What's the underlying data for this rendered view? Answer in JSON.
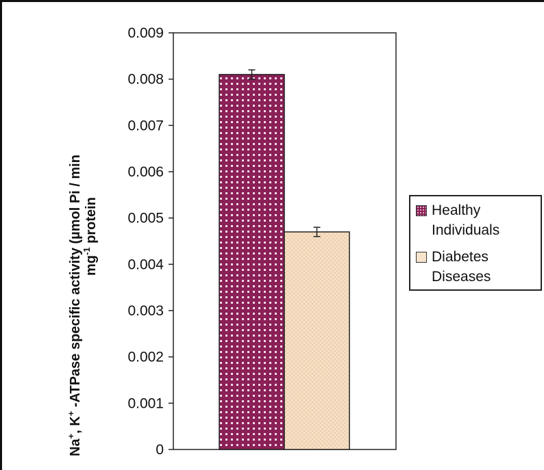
{
  "chart_data": {
    "type": "bar",
    "title": "",
    "xlabel": "",
    "ylabel_parts": [
      "Na",
      "+",
      ", K",
      "+",
      " -ATPase specific activity  (",
      "µ",
      "mol Pi / min",
      "mg",
      "-1",
      " protein"
    ],
    "ylim": [
      0,
      0.009
    ],
    "yticks": [
      "0",
      "0.001",
      "0.002",
      "0.003",
      "0.004",
      "0.005",
      "0.006",
      "0.007",
      "0.008",
      "0.009"
    ],
    "grid": false,
    "legend_position": "right",
    "series": [
      {
        "name": "Healthy Individuals",
        "value": 0.0081,
        "error": 0.0001,
        "color": "#8b2057",
        "pattern": "dotted-grid"
      },
      {
        "name": "Diabetes Diseases",
        "value": 0.0047,
        "error": 0.0001,
        "color": "#f6dfc4",
        "pattern": "light-crosshatch"
      }
    ]
  },
  "legend": {
    "items": [
      {
        "line1": "Healthy",
        "line2": "Individuals"
      },
      {
        "line1": "Diabetes",
        "line2": "Diseases"
      }
    ]
  }
}
